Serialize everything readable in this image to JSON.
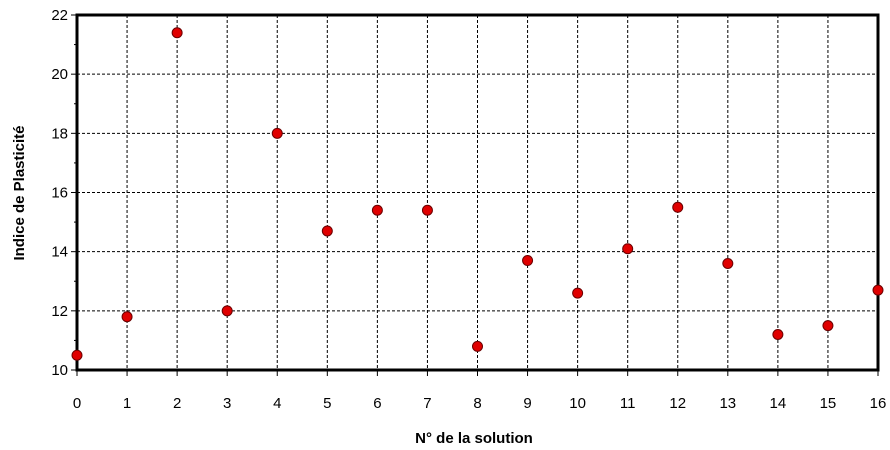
{
  "chart_data": {
    "type": "scatter",
    "xlabel": "N° de la solution",
    "ylabel": "Indice de Plasticité",
    "xlim": [
      0,
      16
    ],
    "ylim": [
      10,
      22
    ],
    "x_ticks": [
      0,
      1,
      2,
      3,
      4,
      5,
      6,
      7,
      8,
      9,
      10,
      11,
      12,
      13,
      14,
      15,
      16
    ],
    "y_ticks": [
      10,
      12,
      14,
      16,
      18,
      20,
      22
    ],
    "grid": true,
    "point_color": "#e00000",
    "series": [
      {
        "x": [
          0,
          1,
          2,
          3,
          4,
          5,
          6,
          7,
          8,
          9,
          10,
          11,
          12,
          13,
          14,
          15,
          16
        ],
        "y": [
          10.5,
          11.8,
          21.4,
          12.0,
          18.0,
          14.7,
          15.4,
          15.4,
          10.8,
          13.7,
          12.6,
          14.1,
          15.5,
          13.6,
          11.2,
          11.5,
          12.7
        ]
      }
    ]
  }
}
